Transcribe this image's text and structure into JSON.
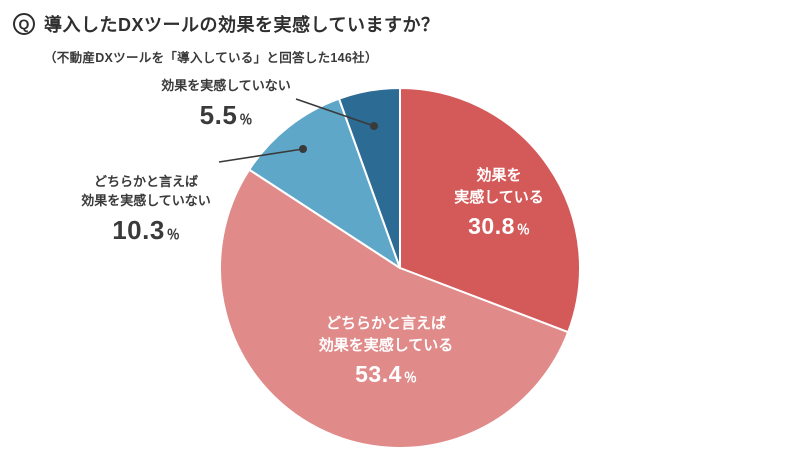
{
  "header": {
    "q_label": "Q",
    "title": "導入したDXツールの効果を実感していますか？",
    "subtitle": "（不動産DXツールを「導入している」と回答した146社）"
  },
  "chart_data": {
    "type": "pie",
    "title": "導入したDXツールの効果を実感していますか？",
    "subtitle": "（不動産DXツールを「導入している」と回答した146社）",
    "unit": "%",
    "start_angle": "12-o-clock",
    "direction": "clockwise",
    "legend": "none",
    "slices": [
      {
        "label": "効果を実感している",
        "label_lines": [
          "効果を",
          "実感している"
        ],
        "value": 30.8,
        "value_text": "30.8",
        "unit": "％",
        "color": "#d45959",
        "label_position": "inside"
      },
      {
        "label": "どちらかと言えば効果を実感している",
        "label_lines": [
          "どちらかと言えば",
          "効果を実感している"
        ],
        "value": 53.4,
        "value_text": "53.4",
        "unit": "％",
        "color": "#e08a8a",
        "label_position": "inside"
      },
      {
        "label": "どちらかと言えば効果を実感していない",
        "label_lines": [
          "どちらかと言えば",
          "効果を実感していない"
        ],
        "value": 10.3,
        "value_text": "10.3",
        "unit": "％",
        "color": "#5fa7c9",
        "label_position": "outside"
      },
      {
        "label": "効果を実感していない",
        "label_lines": [
          "効果を実感していない"
        ],
        "value": 5.5,
        "value_text": "5.5",
        "unit": "％",
        "color": "#2c6b94",
        "label_position": "outside"
      }
    ]
  }
}
